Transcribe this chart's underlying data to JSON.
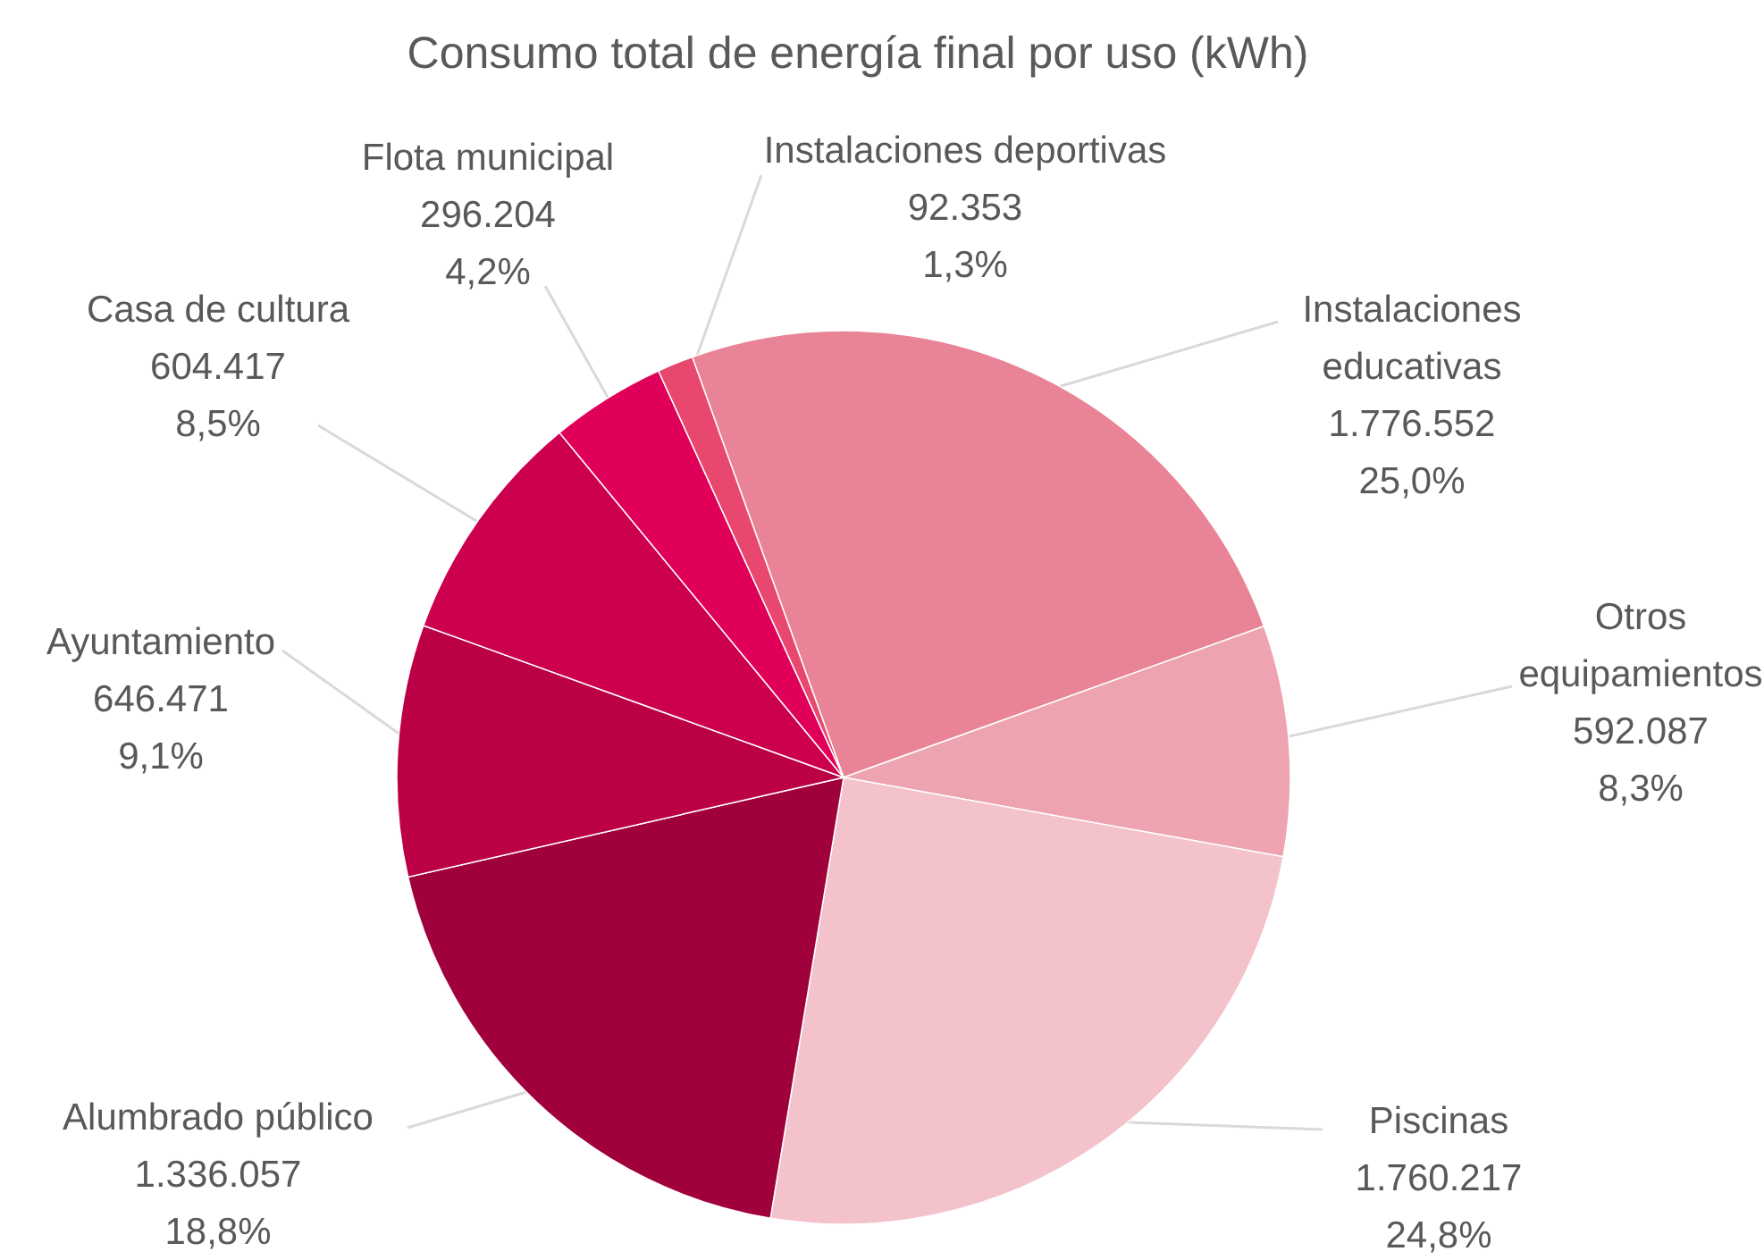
{
  "chart_data": {
    "type": "pie",
    "title": "Consumo total de energía final por uso (kWh)",
    "categories": [
      "Instalaciones educativas",
      "Otros equipamientos",
      "Piscinas",
      "Alumbrado público",
      "Ayuntamiento",
      "Casa de cultura",
      "Flota municipal",
      "Instalaciones deportivas"
    ],
    "values": [
      1776552,
      592087,
      1760217,
      1336057,
      646471,
      604417,
      296204,
      92353
    ],
    "colors": [
      "#e98497",
      "#eea3b0",
      "#f4c2cb",
      "#a0003c",
      "#bb0045",
      "#cc004f",
      "#e0005a",
      "#e8486e"
    ],
    "value_labels": [
      "1.776.552\n25,0%",
      "592.087\n8,3%",
      "1.760.217\n24,8%",
      "1.336.057\n18,8%",
      "646.471\n9,1%",
      "604.417\n8,5%",
      "296.204\n4,2%",
      "92.353\n1,3%"
    ]
  }
}
